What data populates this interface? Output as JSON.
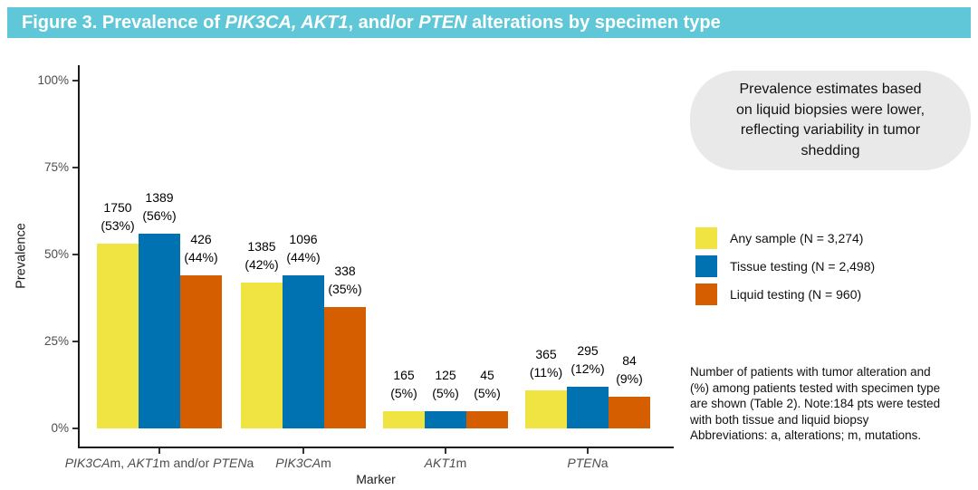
{
  "header": {
    "segments": [
      {
        "t": "Figure 3. Prevalence of ",
        "i": false
      },
      {
        "t": "PIK3CA, AKT1",
        "i": true
      },
      {
        "t": ", and/or ",
        "i": false
      },
      {
        "t": "PTEN",
        "i": true
      },
      {
        "t": " alterations by specimen type",
        "i": false
      }
    ],
    "text": "Figure 3. Prevalence of PIK3CA, AKT1, and/or PTEN alterations by specimen type"
  },
  "colors": {
    "title_bar_bg": "#5FC7D7",
    "title_text": "#FFFFFF",
    "axis": "#1a1a1a",
    "tick_label": "#4D4D4D",
    "callout_bg": "#E9E9E9",
    "yellow": "#F0E442",
    "blue": "#0072B2",
    "orange": "#D55E00"
  },
  "callout": {
    "lines": [
      "Prevalence estimates based",
      "on liquid biopsies were lower,",
      "reflecting variability in tumor",
      "shedding"
    ]
  },
  "legend": {
    "items": [
      {
        "label": "Any sample (N = 3,274)",
        "color": "#F0E442"
      },
      {
        "label": "Tissue testing (N = 2,498)",
        "color": "#0072B2"
      },
      {
        "label": "Liquid testing (N = 960)",
        "color": "#D55E00"
      }
    ]
  },
  "notes": {
    "lines": [
      "Number of patients with tumor alteration and",
      "(%) among patients tested with specimen type",
      "are shown (Table 2). Note:184 pts were tested",
      "with both tissue and liquid biopsy",
      "Abbreviations: a, alterations; m, mutations."
    ]
  },
  "chart_data": {
    "type": "bar",
    "title": "Figure 3. Prevalence of PIK3CA, AKT1, and/or PTEN alterations by specimen type",
    "xlabel": "Marker",
    "ylabel": "Prevalence",
    "ylim": [
      0,
      100
    ],
    "ytick_values": [
      0,
      25,
      50,
      75,
      100
    ],
    "ytick_labels": [
      "0%",
      "25%",
      "50%",
      "75%",
      "100%"
    ],
    "grid": false,
    "legend_position": "right",
    "categories": [
      "PIK3CAm, AKT1m and/or PTENa",
      "PIK3CAm",
      "AKT1m",
      "PTENa"
    ],
    "category_segments": [
      [
        {
          "t": "PIK3CA",
          "i": true
        },
        {
          "t": "m, ",
          "i": false
        },
        {
          "t": "AKT1",
          "i": true
        },
        {
          "t": "m and/or ",
          "i": false
        },
        {
          "t": "PTEN",
          "i": true
        },
        {
          "t": "a",
          "i": false
        }
      ],
      [
        {
          "t": "PIK3CA",
          "i": true
        },
        {
          "t": "m",
          "i": false
        }
      ],
      [
        {
          "t": "AKT1",
          "i": true
        },
        {
          "t": "m",
          "i": false
        }
      ],
      [
        {
          "t": "PTEN",
          "i": true
        },
        {
          "t": "a",
          "i": false
        }
      ]
    ],
    "series": [
      {
        "name": "Any sample (N = 3,274)",
        "color": "#F0E442",
        "counts": [
          1750,
          1385,
          165,
          365
        ],
        "percents": [
          53,
          42,
          5,
          11
        ]
      },
      {
        "name": "Tissue testing (N = 2,498)",
        "color": "#0072B2",
        "counts": [
          1389,
          1096,
          125,
          295
        ],
        "percents": [
          56,
          44,
          5,
          12
        ]
      },
      {
        "name": "Liquid testing (N = 960)",
        "color": "#D55E00",
        "counts": [
          426,
          338,
          45,
          84
        ],
        "percents": [
          44,
          35,
          5,
          9
        ]
      }
    ],
    "bar_label_format": "count newline (percent%)"
  }
}
